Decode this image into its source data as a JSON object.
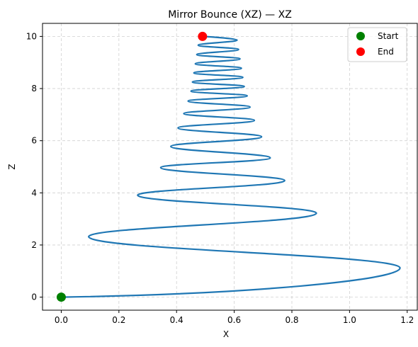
{
  "chart_data": {
    "type": "line",
    "title": "Mirror Bounce (XZ) — XZ",
    "xlabel": "X",
    "ylabel": "Z",
    "xlim": [
      -0.065,
      1.235
    ],
    "ylim": [
      -0.5,
      10.5
    ],
    "xticks": [
      0.0,
      0.2,
      0.4,
      0.6,
      0.8,
      1.0,
      1.2
    ],
    "xtick_labels": [
      "0.0",
      "0.2",
      "0.4",
      "0.6",
      "0.8",
      "1.0",
      "1.2"
    ],
    "yticks": [
      0,
      2,
      4,
      6,
      8,
      10
    ],
    "ytick_labels": [
      "0",
      "2",
      "4",
      "6",
      "8",
      "10"
    ],
    "grid": true,
    "legend_position": "top-right",
    "colors": {
      "line": "#1f77b4",
      "start": "#008000",
      "end": "#ff0000"
    },
    "series": [
      {
        "kind": "line",
        "x": [
          0.0,
          1.175,
          0.095,
          0.885,
          0.265,
          0.775,
          0.345,
          0.725,
          0.38,
          0.695,
          0.405,
          0.67,
          0.425,
          0.655,
          0.44,
          0.645,
          0.45,
          0.635,
          0.455,
          0.63,
          0.46,
          0.625,
          0.465,
          0.62,
          0.47,
          0.615,
          0.475,
          0.61,
          0.49
        ],
        "y": [
          0.0,
          1.12,
          2.32,
          3.22,
          3.91,
          4.47,
          4.97,
          5.34,
          5.78,
          6.15,
          6.49,
          6.78,
          7.04,
          7.29,
          7.52,
          7.72,
          7.9,
          8.08,
          8.25,
          8.43,
          8.6,
          8.78,
          8.95,
          9.14,
          9.3,
          9.5,
          9.66,
          9.86,
          10.0
        ]
      },
      {
        "kind": "scatter",
        "name": "Start",
        "x": [
          0.0
        ],
        "y": [
          0.0
        ]
      },
      {
        "kind": "scatter",
        "name": "End",
        "x": [
          0.49
        ],
        "y": [
          10.0
        ]
      }
    ]
  }
}
